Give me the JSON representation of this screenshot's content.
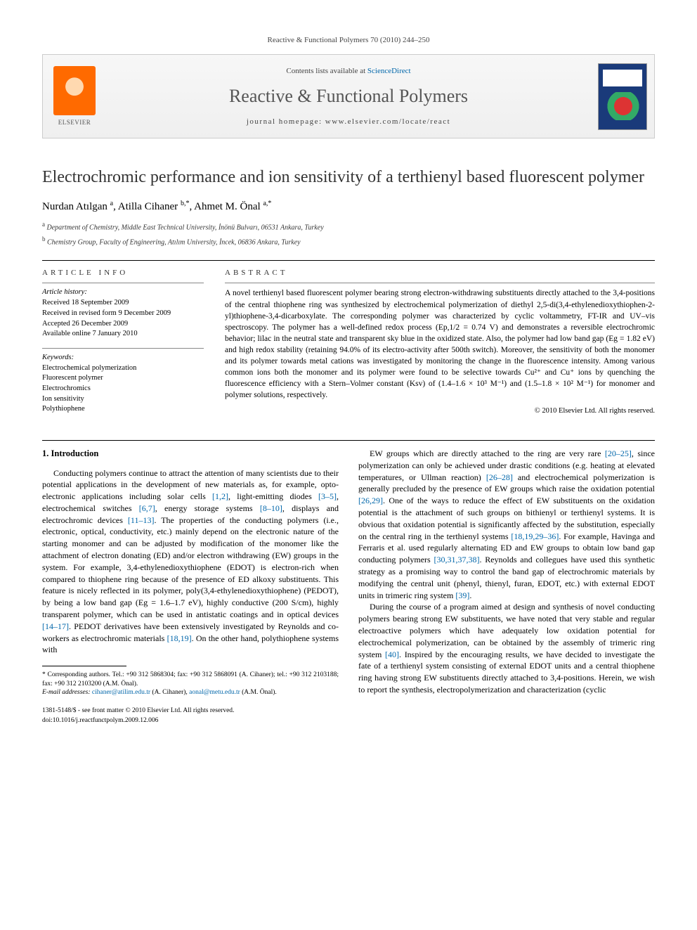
{
  "header": {
    "citation": "Reactive & Functional Polymers 70 (2010) 244–250"
  },
  "banner": {
    "elsevier": "ELSEVIER",
    "contents_prefix": "Contents lists available at ",
    "contents_link": "ScienceDirect",
    "journal": "Reactive & Functional Polymers",
    "homepage": "journal homepage: www.elsevier.com/locate/react"
  },
  "title": "Electrochromic performance and ion sensitivity of a terthienyl based fluorescent polymer",
  "authors_html": "Nurdan Atılgan <sup>a</sup>, Atilla Cihaner <sup>b,*</sup>, Ahmet M. Önal <sup>a,*</sup>",
  "affiliations": [
    {
      "sup": "a",
      "text": "Department of Chemistry, Middle East Technical University, İnönü Bulvarı, 06531 Ankara, Turkey"
    },
    {
      "sup": "b",
      "text": "Chemistry Group, Faculty of Engineering, Atılım University, İncek, 06836 Ankara, Turkey"
    }
  ],
  "info": {
    "head": "ARTICLE INFO",
    "history_label": "Article history:",
    "history": [
      "Received 18 September 2009",
      "Received in revised form 9 December 2009",
      "Accepted 26 December 2009",
      "Available online 7 January 2010"
    ],
    "keywords_label": "Keywords:",
    "keywords": [
      "Electrochemical polymerization",
      "Fluorescent polymer",
      "Electrochromics",
      "Ion sensitivity",
      "Polythiophene"
    ]
  },
  "abstract": {
    "head": "ABSTRACT",
    "text": "A novel terthienyl based fluorescent polymer bearing strong electron-withdrawing substituents directly attached to the 3,4-positions of the central thiophene ring was synthesized by electrochemical polymerization of diethyl 2,5-di(3,4-ethylenedioxythiophen-2-yl)thiophene-3,4-dicarboxylate. The corresponding polymer was characterized by cyclic voltammetry, FT-IR and UV–vis spectroscopy. The polymer has a well-defined redox process (Ep,1/2 = 0.74 V) and demonstrates a reversible electrochromic behavior; lilac in the neutral state and transparent sky blue in the oxidized state. Also, the polymer had low band gap (Eg = 1.82 eV) and high redox stability (retaining 94.0% of its electro-activity after 500th switch). Moreover, the sensitivity of both the monomer and its polymer towards metal cations was investigated by monitoring the change in the fluorescence intensity. Among various common ions both the monomer and its polymer were found to be selective towards Cu²⁺ and Cu⁺ ions by quenching the fluorescence efficiency with a Stern–Volmer constant (Ksv) of (1.4–1.6 × 10³ M⁻¹) and (1.5–1.8 × 10² M⁻¹) for monomer and polymer solutions, respectively.",
    "copyright": "© 2010 Elsevier Ltd. All rights reserved."
  },
  "body": {
    "section_heading": "1. Introduction",
    "col1_p1": "Conducting polymers continue to attract the attention of many scientists due to their potential applications in the development of new materials as, for example, opto-electronic applications including solar cells [1,2], light-emitting diodes [3–5], electrochemical switches [6,7], energy storage systems [8–10], displays and electrochromic devices [11–13]. The properties of the conducting polymers (i.e., electronic, optical, conductivity, etc.) mainly depend on the electronic nature of the starting monomer and can be adjusted by modification of the monomer like the attachment of electron donating (ED) and/or electron withdrawing (EW) groups in the system. For example, 3,4-ethylenedioxythiophene (EDOT) is electron-rich when compared to thiophene ring because of the presence of ED alkoxy substituents. This feature is nicely reflected in its polymer, poly(3,4-ethylenedioxythiophene) (PEDOT), by being a low band gap (Eg = 1.6–1.7 eV), highly conductive (200 S/cm), highly transparent polymer, which can be used in antistatic coatings and in optical devices [14–17]. PEDOT derivatives have been extensively investigated by Reynolds and co-workers as electrochromic materials [18,19]. On the other hand, polythiophene systems with",
    "col2_p1": "EW groups which are directly attached to the ring are very rare [20–25], since polymerization can only be achieved under drastic conditions (e.g. heating at elevated temperatures, or Ullman reaction) [26–28] and electrochemical polymerization is generally precluded by the presence of EW groups which raise the oxidation potential [26,29]. One of the ways to reduce the effect of EW substituents on the oxidation potential is the attachment of such groups on bithienyl or terthienyl systems. It is obvious that oxidation potential is significantly affected by the substitution, especially on the central ring in the terthienyl systems [18,19,29–36]. For example, Havinga and Ferraris et al. used regularly alternating ED and EW groups to obtain low band gap conducting polymers [30,31,37,38]. Reynolds and collegues have used this synthetic strategy as a promising way to control the band gap of electrochromic materials by modifying the central unit (phenyl, thienyl, furan, EDOT, etc.) with external EDOT units in trimeric ring system [39].",
    "col2_p2": "During the course of a program aimed at design and synthesis of novel conducting polymers bearing strong EW substituents, we have noted that very stable and regular electroactive polymers which have adequately low oxidation potential for electrochemical polymerization, can be obtained by the assembly of trimeric ring system [40]. Inspired by the encouraging results, we have decided to investigate the fate of a terthienyl system consisting of external EDOT units and a central thiophene ring having strong EW substituents directly attached to 3,4-positions. Herein, we wish to report the synthesis, electropolymerization and characterization (cyclic"
  },
  "footnote": {
    "star": "* Corresponding authors. Tel.: +90 312 5868304; fax: +90 312 5868091 (A. Cihaner); tel.: +90 312 2103188; fax: +90 312 2103200 (A.M. Önal).",
    "emails_label": "E-mail addresses:",
    "email1": "cihaner@atilim.edu.tr",
    "email1_who": "(A. Cihaner),",
    "email2": "aonal@metu.edu.tr",
    "email2_who": "(A.M. Önal)."
  },
  "footer": {
    "issn": "1381-5148/$ - see front matter © 2010 Elsevier Ltd. All rights reserved.",
    "doi": "doi:10.1016/j.reactfunctpolym.2009.12.006"
  },
  "refs": [
    "[1,2]",
    "[3–5]",
    "[6,7]",
    "[8–10]",
    "[11–13]",
    "[14–17]",
    "[18,19]",
    "[20–25]",
    "[26–28]",
    "[26,29]",
    "[18,19,29–36]",
    "[30,31,37,38]",
    "[39]",
    "[40]"
  ]
}
